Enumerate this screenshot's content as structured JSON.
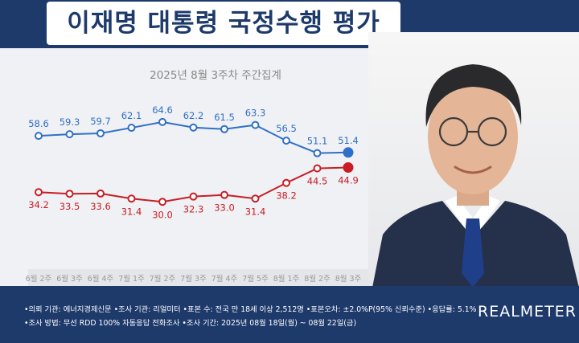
{
  "title": "이재명 대통령 국정수행 평가",
  "chart_data": {
    "type": "line",
    "subtitle": "2025년 8월 3주차 주간집계",
    "categories": [
      "6월 2주",
      "6월 3주",
      "6월 4주",
      "7월 1주",
      "7월 2주",
      "7월 3주",
      "7월 4주",
      "7월 5주",
      "8월 1주",
      "8월 2주",
      "8월 3주"
    ],
    "series": [
      {
        "values": [
          58.6,
          59.3,
          59.7,
          62.1,
          64.6,
          62.2,
          61.5,
          63.3,
          56.5,
          51.1,
          51.4
        ],
        "color": "#2f6fc7"
      },
      {
        "values": [
          34.2,
          33.5,
          33.6,
          31.4,
          30.0,
          32.3,
          33.0,
          31.4,
          38.2,
          44.5,
          44.9
        ],
        "color": "#c81d25"
      }
    ],
    "ylim": [
      20,
      75
    ],
    "grid": false,
    "legend": "none"
  },
  "footer": {
    "line1": "•의뢰 기관: 에너지경제신문 •조사 기관: 리얼미터 •표본 수: 전국 만 18세 이상 2,512명 •표본오차: ±2.0%P(95% 신뢰수준) •응답률: 5.1%",
    "line2": "•조사 방법: 무선 RDD 100% 자동응답 전화조사 •조사 기간: 2025년 08월 18일(월) ~ 08월 22일(금)",
    "brand": "REALMETER"
  },
  "colors": {
    "navy": "#1d3a6b",
    "blue": "#2f6fc7",
    "red": "#c81d25"
  }
}
